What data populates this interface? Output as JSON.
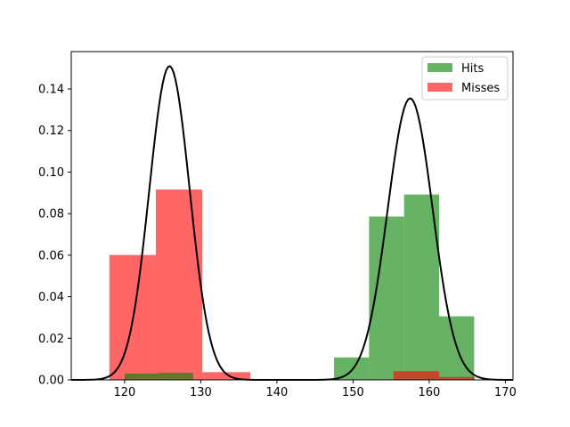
{
  "chart_data": {
    "type": "histogram",
    "title": "",
    "xlabel": "",
    "ylabel": "",
    "xlim": [
      113,
      171
    ],
    "ylim": [
      0,
      0.158
    ],
    "x_ticks": [
      120,
      130,
      140,
      150,
      160,
      170
    ],
    "y_ticks": [
      0.0,
      0.02,
      0.04,
      0.06,
      0.08,
      0.1,
      0.12,
      0.14
    ],
    "y_tick_labels": [
      "0.00",
      "0.02",
      "0.04",
      "0.06",
      "0.08",
      "0.10",
      "0.12",
      "0.14"
    ],
    "grid": false,
    "legend_position": "top-right",
    "series": [
      {
        "name": "Hits",
        "color": "#008000",
        "opacity": 0.6,
        "bins": [
          {
            "x0": 147.5,
            "x1": 152.1,
            "value": 0.0108
          },
          {
            "x0": 152.1,
            "x1": 156.7,
            "value": 0.0786
          },
          {
            "x0": 156.7,
            "x1": 161.3,
            "value": 0.0892
          },
          {
            "x0": 161.3,
            "x1": 165.9,
            "value": 0.0306
          }
        ],
        "small_bins": [
          {
            "x0": 155.3,
            "x1": 161.3,
            "value": 0.0042
          },
          {
            "x0": 161.3,
            "x1": 166.0,
            "value": 0.0014
          }
        ]
      },
      {
        "name": "Misses",
        "color": "#ff0000",
        "opacity": 0.6,
        "bins": [
          {
            "x0": 118.0,
            "x1": 124.1,
            "value": 0.0601
          },
          {
            "x0": 124.1,
            "x1": 130.2,
            "value": 0.0916
          },
          {
            "x0": 130.2,
            "x1": 136.5,
            "value": 0.0037
          }
        ],
        "small_bins": [
          {
            "x0": 120.0,
            "x1": 124.3,
            "value": 0.003
          },
          {
            "x0": 124.3,
            "x1": 129.0,
            "value": 0.0034
          }
        ]
      }
    ],
    "curves": [
      {
        "name": "fit-misses",
        "mean": 125.9,
        "std": 2.65,
        "peak": 0.151,
        "color": "#000000"
      },
      {
        "name": "fit-hits",
        "mean": 157.5,
        "std": 2.95,
        "peak": 0.1355,
        "color": "#000000"
      }
    ]
  }
}
